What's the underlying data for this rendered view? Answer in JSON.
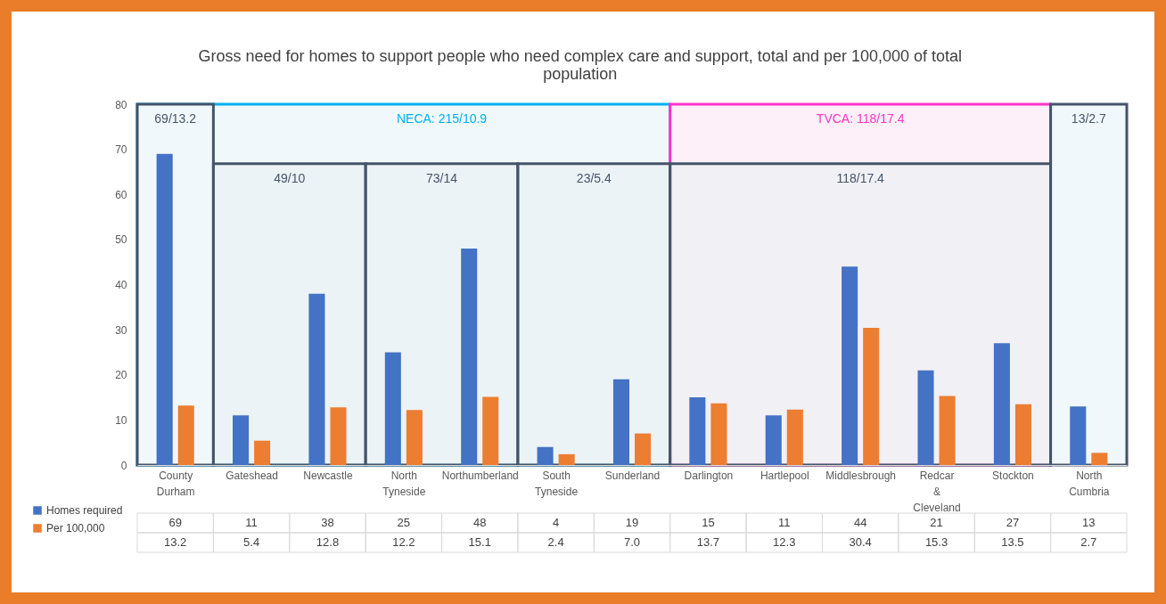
{
  "chart_data": {
    "type": "bar",
    "title": "Gross need for homes to support people who need complex care and support, total and per 100,000 of total population",
    "categories": [
      "County Durham",
      "Gateshead",
      "Newcastle",
      "North Tyneside",
      "Northumberland",
      "South Tyneside",
      "Sunderland",
      "Darlington",
      "Hartlepool",
      "Middlesbrough",
      "Redcar & Cleveland",
      "Stockton",
      "North Cumbria"
    ],
    "series": [
      {
        "name": "Homes required",
        "color": "#4472c4",
        "values": [
          69,
          11,
          38,
          25,
          48,
          4,
          19,
          15,
          11,
          44,
          21,
          27,
          13
        ],
        "value_labels": [
          "69",
          "11",
          "38",
          "25",
          "48",
          "4",
          "19",
          "15",
          "11",
          "44",
          "21",
          "27",
          "13"
        ]
      },
      {
        "name": "Per 100,000",
        "color": "#ed7d31",
        "values": [
          13.2,
          5.4,
          12.8,
          12.2,
          15.1,
          2.4,
          7.0,
          13.7,
          12.3,
          30.4,
          15.3,
          13.5,
          2.7
        ],
        "value_labels": [
          "13.2",
          "5.4",
          "12.8",
          "12.2",
          "15.1",
          "2.4",
          "7.0",
          "13.7",
          "12.3",
          "30.4",
          "15.3",
          "13.5",
          "2.7"
        ]
      }
    ],
    "ylim": [
      0,
      80
    ],
    "yticks": [
      0,
      10,
      20,
      30,
      40,
      50,
      60,
      70,
      80
    ],
    "legend": "bottom left",
    "bands": [
      {
        "axis": "x",
        "from": "County Durham",
        "to": "Sunderland",
        "label": "NECA: 215/10.9",
        "color": "#00b0f0"
      },
      {
        "axis": "x",
        "from": "Darlington",
        "to": "Stockton",
        "label": "TVCA: 118/17.4",
        "color": "#ff33cc"
      },
      {
        "axis": "x",
        "from": "County Durham",
        "to": "County Durham",
        "label": "69/13.2",
        "color": "#44546a"
      },
      {
        "axis": "x",
        "from": "Gateshead",
        "to": "Newcastle",
        "label": "49/10",
        "color": "#44546a"
      },
      {
        "axis": "x",
        "from": "North Tyneside",
        "to": "Northumberland",
        "label": "73/14",
        "color": "#44546a"
      },
      {
        "axis": "x",
        "from": "South Tyneside",
        "to": "Sunderland",
        "label": "23/5.4",
        "color": "#44546a"
      },
      {
        "axis": "x",
        "from": "Darlington",
        "to": "Stockton",
        "label": "118/17.4",
        "color": "#44546a"
      },
      {
        "axis": "x",
        "from": "North Cumbria",
        "to": "North Cumbria",
        "label": "13/2.7",
        "color": "#44546a"
      }
    ]
  }
}
